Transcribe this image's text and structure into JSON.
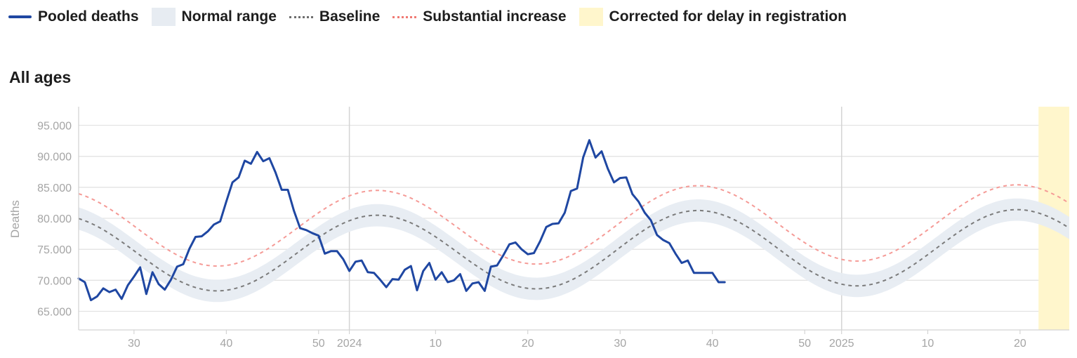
{
  "legend": {
    "pooled": "Pooled deaths",
    "normal": "Normal range",
    "baseline": "Baseline",
    "substantial": "Substantial increase",
    "corrected": "Corrected for delay in registration"
  },
  "section_title": "All ages",
  "colors": {
    "pooled": "#1f47a2",
    "pooled_corrected": "#4e6a93",
    "normal_band": "#e7ecf2",
    "baseline": "#7b7b7b",
    "substantial": "#f59a96",
    "corrected_band": "#fff6cc"
  },
  "chart_data": {
    "type": "line",
    "ylabel": "Deaths",
    "ylim": [
      62000,
      98000
    ],
    "yticks": [
      65000,
      70000,
      75000,
      80000,
      85000,
      90000,
      95000
    ],
    "ytick_labels": [
      "65.000",
      "70.000",
      "75.000",
      "80.000",
      "85.000",
      "90.000",
      "95.000"
    ],
    "x_range": [
      0,
      161
    ],
    "xticks": [
      {
        "x": 9,
        "label": "30"
      },
      {
        "x": 24,
        "label": "40"
      },
      {
        "x": 39,
        "label": "50"
      },
      {
        "x": 44,
        "label": "2024",
        "year": true
      },
      {
        "x": 58,
        "label": "10"
      },
      {
        "x": 73,
        "label": "20"
      },
      {
        "x": 88,
        "label": "30"
      },
      {
        "x": 103,
        "label": "40"
      },
      {
        "x": 118,
        "label": "50"
      },
      {
        "x": 124,
        "label": "2025",
        "year": true
      },
      {
        "x": 138,
        "label": "10"
      },
      {
        "x": 153,
        "label": "20"
      }
    ],
    "x_index_note": "Index 0 = week 21 of 2023; weekly steps; 2023 has 52 weeks, 2024 has 52 weeks",
    "corrected_from_index": 156,
    "corrected_to_index": 161,
    "series": [
      {
        "name": "Pooled deaths",
        "values": [
          70300,
          69700,
          66800,
          67400,
          68700,
          68100,
          68500,
          67000,
          69200,
          70600,
          72100,
          67800,
          71300,
          69400,
          68500,
          70100,
          72200,
          72600,
          75100,
          77000,
          77100,
          77900,
          79000,
          79500,
          82700,
          85800,
          86600,
          89300,
          88800,
          90700,
          89200,
          89700,
          87400,
          84600,
          84600,
          81200,
          78400,
          78100,
          77600,
          77200,
          74300,
          74700,
          74700,
          73400,
          71500,
          73000,
          73200,
          71300,
          71200,
          70100,
          68900,
          70200,
          70100,
          71700,
          72300,
          68400,
          71500,
          72800,
          70100,
          71300,
          69700,
          70000,
          71000,
          68300,
          69500,
          69700,
          68300,
          72200,
          72400,
          74000,
          75800,
          76100,
          75000,
          74200,
          74400,
          76300,
          78600,
          79100,
          79200,
          80900,
          84400,
          84800,
          89800,
          92600,
          89800,
          90800,
          88000,
          85800,
          86500,
          86600,
          83900,
          82700,
          80900,
          79700,
          77300,
          76500,
          76000,
          74300,
          72800,
          73200,
          71200,
          71200,
          71200,
          71200,
          69700,
          69700
        ],
        "first_index": 0
      },
      {
        "name": "Baseline",
        "period": 52,
        "peak_index": 48.5,
        "levels": [
          {
            "from": 0,
            "min": 68300,
            "max": 80500
          },
          {
            "from": 74,
            "min": 69100,
            "max": 81400
          }
        ]
      }
    ],
    "substantial_offset": 4000,
    "normal_halfwidth": 1800
  }
}
